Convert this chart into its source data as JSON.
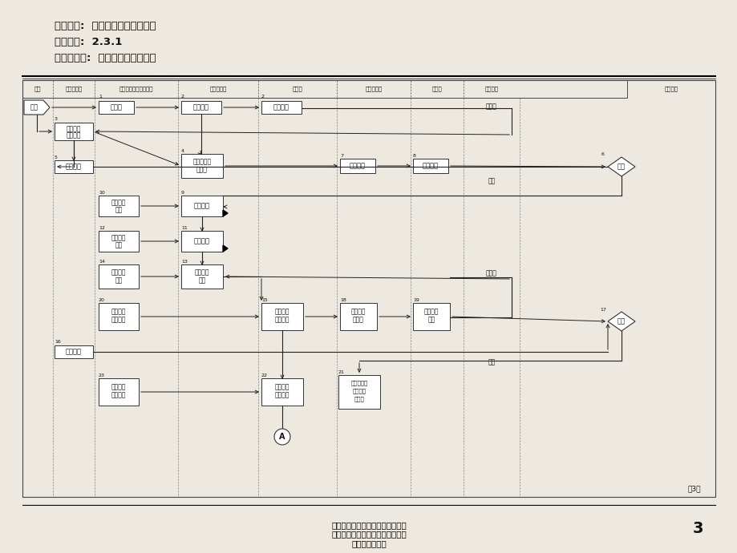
{
  "title_line1": "流程名称:  项目工程总体建设流程",
  "title_line2": "流程编号:  2.3.1",
  "title_line3": "流程拥有者:  工程管理部及项目部",
  "col_headers": [
    "时间",
    "战略发展部",
    "前期拓展部规划技术部",
    "工程管理部",
    "项目部",
    "资金财务部",
    "销售部",
    "物业公司",
    "高层领导"
  ],
  "footer_center": "天津泰丰工业园投资（集团）有限\n公司组织结构及流程设计报告工程\n管理部及项目部",
  "footer_num": "3",
  "page_label": "第3页",
  "bg": "#ede8e0"
}
